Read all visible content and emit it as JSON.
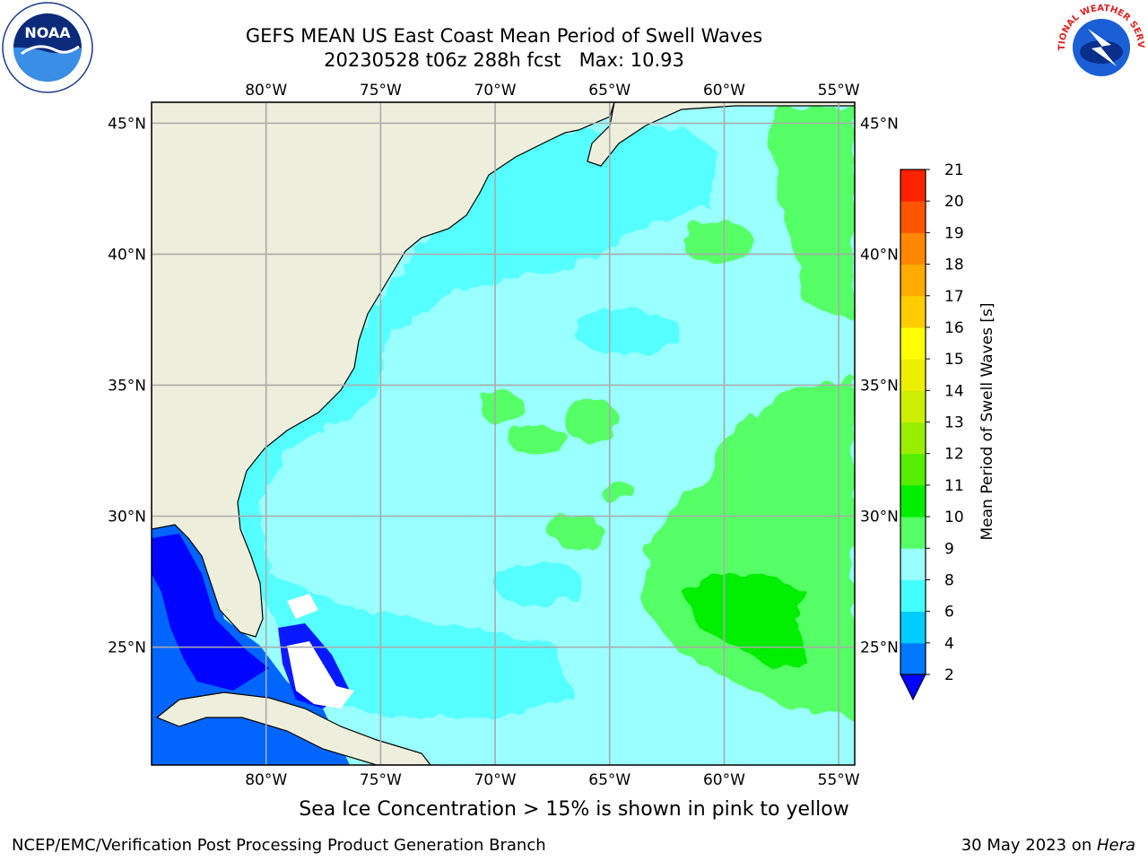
{
  "header": {
    "title_line1": "GEFS MEAN US East Coast Mean Period of Swell Waves",
    "title_line2": "20230528 t06z 288h fcst   Max: 10.93"
  },
  "logos": {
    "left": "noaa-logo",
    "left_text": "NOAA",
    "right": "nws-logo",
    "right_text": "NATIONAL WEATHER SERVICE"
  },
  "map": {
    "lon_labels": [
      "80°W",
      "75°W",
      "70°W",
      "65°W",
      "60°W",
      "55°W"
    ],
    "lat_labels": [
      "45°N",
      "40°N",
      "35°N",
      "30°N",
      "25°N"
    ],
    "lon_range": [
      -85,
      -54.3
    ],
    "lat_range": [
      20.5,
      45.8
    ],
    "grid": true,
    "colors": {
      "land": "#eeeedc",
      "ocean_base": "#99ffff",
      "gulf": "#0066ff",
      "shelf": "#55ffff",
      "band9": "#55ff66",
      "band10": "#00ee00",
      "deep_blue": "#0000ff"
    }
  },
  "colorbar": {
    "label": "Mean Period of Swell Waves [s]",
    "ticks": [
      "2",
      "4",
      "6",
      "8",
      "9",
      "10",
      "11",
      "12",
      "13",
      "14",
      "15",
      "16",
      "17",
      "18",
      "19",
      "20",
      "21"
    ],
    "colors": [
      "#0077ff",
      "#00ccff",
      "#44ffff",
      "#99ffff",
      "#55ff66",
      "#00ee00",
      "#55ee00",
      "#99ee00",
      "#ccee00",
      "#eeee00",
      "#ffff00",
      "#ffcc00",
      "#ffaa00",
      "#ff8800",
      "#ff5500",
      "#ff2200"
    ],
    "under_color": "#0000ff",
    "extend": "min"
  },
  "footer": {
    "ice_note": "Sea Ice Concentration > 15% is shown in pink to yellow",
    "credit": "NCEP/EMC/Verification Post Processing Product Generation Branch",
    "date": "30 May 2023 on ",
    "host": "Hera"
  }
}
